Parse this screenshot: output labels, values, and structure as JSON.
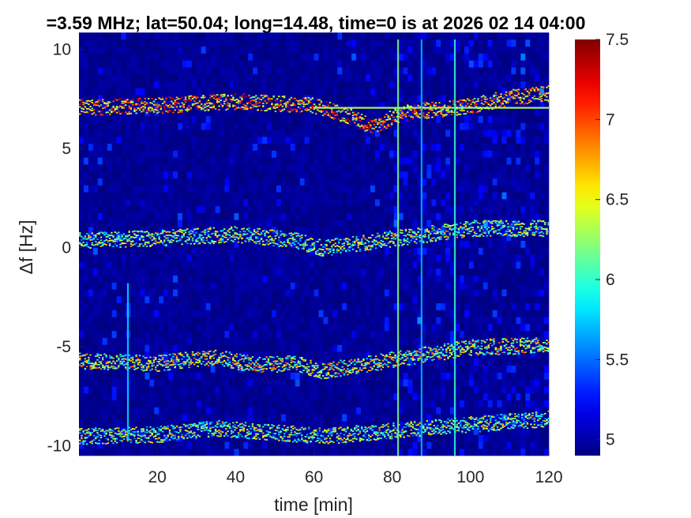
{
  "chart_data": {
    "type": "heatmap",
    "title": "=3.59 MHz;  lat=50.04; long=14.48, time=0 is at 2026 02 14 04:00",
    "xlabel": "time [min]",
    "ylabel": "Δf [Hz]",
    "xlim": [
      0,
      120
    ],
    "ylim": [
      -10.5,
      10.5
    ],
    "x_ticks": [
      20,
      40,
      60,
      80,
      100,
      120
    ],
    "y_ticks": [
      -10,
      -5,
      0,
      5,
      10
    ],
    "x_tick_labels": [
      "20",
      "40",
      "60",
      "80",
      "100",
      "120"
    ],
    "y_tick_labels": [
      "-10",
      "-5",
      "0",
      "5",
      "10"
    ],
    "colormap": "jet",
    "colorbar": {
      "min": 4.9,
      "max": 7.5,
      "ticks": [
        5,
        5.5,
        6,
        6.5,
        7,
        7.5
      ],
      "tick_labels": [
        "5",
        "5.5",
        "6",
        "6.5",
        "7",
        "7.5"
      ]
    },
    "background_level": 4.95,
    "traces": [
      {
        "points": [
          [
            0,
            7.1
          ],
          [
            20,
            7.2
          ],
          [
            40,
            7.4
          ],
          [
            60,
            7.2
          ],
          [
            70,
            6.6
          ],
          [
            75,
            6.1
          ],
          [
            82,
            6.8
          ],
          [
            100,
            7.2
          ],
          [
            110,
            7.6
          ],
          [
            120,
            7.8
          ]
        ],
        "intensity": 6.6
      },
      {
        "points": [
          [
            0,
            0.4
          ],
          [
            20,
            0.5
          ],
          [
            40,
            0.7
          ],
          [
            55,
            0.4
          ],
          [
            62,
            0.0
          ],
          [
            100,
            1.0
          ],
          [
            120,
            1.0
          ]
        ],
        "intensity": 6.0
      },
      {
        "points": [
          [
            0,
            -5.7
          ],
          [
            20,
            -5.8
          ],
          [
            35,
            -5.5
          ],
          [
            45,
            -5.9
          ],
          [
            55,
            -5.8
          ],
          [
            62,
            -6.2
          ],
          [
            100,
            -5.0
          ],
          [
            120,
            -4.9
          ]
        ],
        "intensity": 6.2
      },
      {
        "points": [
          [
            0,
            -9.5
          ],
          [
            20,
            -9.4
          ],
          [
            35,
            -9.1
          ],
          [
            50,
            -9.3
          ],
          [
            62,
            -9.5
          ],
          [
            100,
            -8.9
          ],
          [
            120,
            -8.6
          ]
        ],
        "intensity": 6.0
      }
    ],
    "lines": {
      "horizontal": [
        {
          "y": 7.05,
          "x_start": 60,
          "x_end": 120,
          "level": 6.3
        }
      ],
      "vertical": [
        {
          "x": 12.5,
          "y_start": -9.8,
          "y_end": -1.8,
          "level": 5.8
        },
        {
          "x": 81.5,
          "y_start": -10.5,
          "y_end": 10.5,
          "level": 6.2
        },
        {
          "x": 87.5,
          "y_start": -10.5,
          "y_end": 10.5,
          "level": 5.7
        },
        {
          "x": 96.0,
          "y_start": -10.5,
          "y_end": 10.5,
          "level": 6.0
        }
      ]
    }
  }
}
